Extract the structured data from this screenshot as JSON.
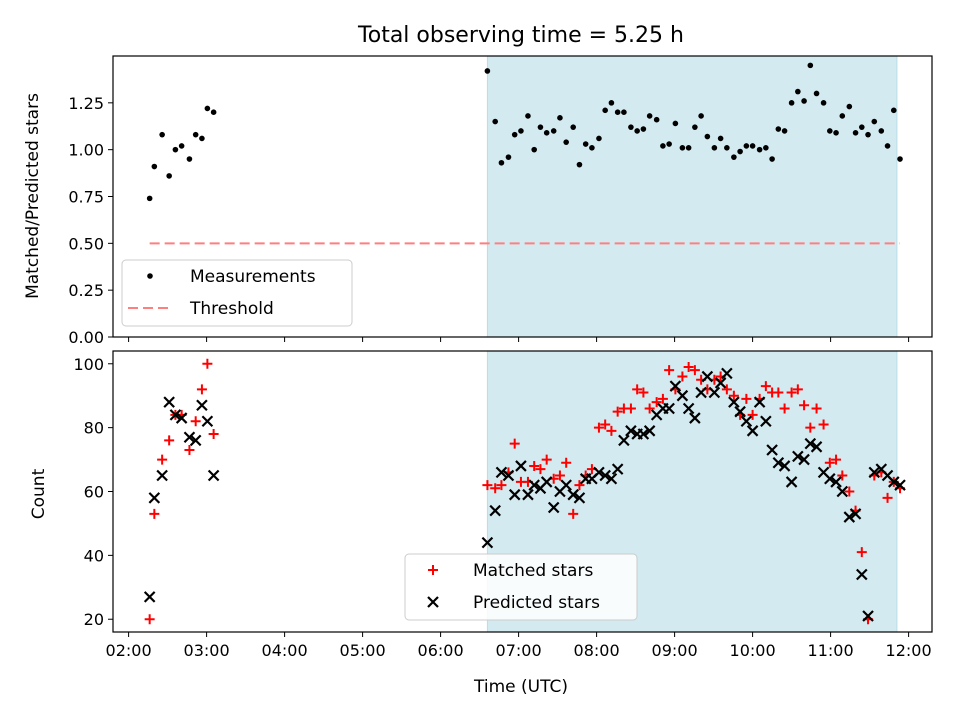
{
  "chart_data": [
    {
      "type": "scatter",
      "title": "Total observing time = 5.25 h",
      "xlabel": "",
      "ylabel": "Matched/Predicted stars",
      "xlim": [
        1.8,
        12.3
      ],
      "ylim": [
        0.0,
        1.5
      ],
      "yticks": [
        0.0,
        0.25,
        0.5,
        0.75,
        1.0,
        1.25
      ],
      "ytick_labels": [
        "0.00",
        "0.25",
        "0.50",
        "0.75",
        "1.00",
        "1.25"
      ],
      "shaded_span": [
        6.6,
        11.85
      ],
      "legend_position": "lower-left",
      "series": [
        {
          "name": "Measurements",
          "marker": "dot",
          "color": "#000000",
          "x": [
            2.27,
            2.33,
            2.43,
            2.52,
            2.6,
            2.68,
            2.78,
            2.86,
            2.94,
            3.01,
            3.09,
            6.6,
            6.7,
            6.78,
            6.87,
            6.95,
            7.03,
            7.12,
            7.2,
            7.28,
            7.36,
            7.45,
            7.53,
            7.61,
            7.7,
            7.78,
            7.86,
            7.94,
            8.03,
            8.11,
            8.19,
            8.27,
            8.35,
            8.44,
            8.52,
            8.6,
            8.68,
            8.77,
            8.85,
            8.93,
            9.01,
            9.1,
            9.18,
            9.26,
            9.34,
            9.42,
            9.51,
            9.59,
            9.67,
            9.76,
            9.84,
            9.92,
            10.0,
            10.09,
            10.17,
            10.25,
            10.33,
            10.41,
            10.5,
            10.58,
            10.66,
            10.74,
            10.82,
            10.91,
            10.99,
            11.07,
            11.15,
            11.24,
            11.32,
            11.4,
            11.48,
            11.56,
            11.65,
            11.73,
            11.81,
            11.89
          ],
          "y": [
            0.74,
            0.91,
            1.08,
            0.86,
            1.0,
            1.02,
            0.95,
            1.08,
            1.06,
            1.22,
            1.2,
            1.42,
            1.15,
            0.93,
            0.96,
            1.08,
            1.1,
            1.18,
            1.0,
            1.12,
            1.09,
            1.1,
            1.17,
            1.04,
            1.12,
            0.92,
            1.03,
            1.01,
            1.06,
            1.21,
            1.25,
            1.2,
            1.2,
            1.12,
            1.1,
            1.11,
            1.18,
            1.16,
            1.02,
            1.03,
            1.14,
            1.01,
            1.01,
            1.12,
            1.18,
            1.07,
            1.01,
            1.06,
            1.01,
            0.96,
            0.99,
            1.02,
            1.02,
            1.0,
            1.01,
            0.95,
            1.11,
            1.1,
            1.25,
            1.31,
            1.26,
            1.45,
            1.3,
            1.25,
            1.1,
            1.09,
            1.18,
            1.23,
            1.09,
            1.12,
            1.08,
            1.15,
            1.1,
            1.02,
            1.21,
            0.95
          ]
        },
        {
          "name": "Threshold",
          "marker": "dashed-line",
          "color": "#ff7f7f",
          "x": [
            2.27,
            11.89
          ],
          "y": [
            0.5,
            0.5
          ]
        }
      ]
    },
    {
      "type": "scatter",
      "title": "",
      "xlabel": "Time (UTC)",
      "ylabel": "Count",
      "xlim": [
        1.8,
        12.3
      ],
      "ylim": [
        16,
        104
      ],
      "yticks": [
        20,
        40,
        60,
        80,
        100
      ],
      "xticks": [
        2,
        3,
        4,
        5,
        6,
        7,
        8,
        9,
        10,
        11,
        12
      ],
      "xtick_labels": [
        "02:00",
        "03:00",
        "04:00",
        "05:00",
        "06:00",
        "07:00",
        "08:00",
        "09:00",
        "10:00",
        "11:00",
        "12:00"
      ],
      "shaded_span": [
        6.6,
        11.85
      ],
      "legend_position": "lower-center",
      "series": [
        {
          "name": "Matched stars",
          "marker": "plus",
          "color": "#ff0000",
          "x": [
            2.27,
            2.33,
            2.43,
            2.52,
            2.6,
            2.68,
            2.78,
            2.86,
            2.94,
            3.01,
            3.09,
            6.6,
            6.7,
            6.78,
            6.87,
            6.95,
            7.03,
            7.12,
            7.2,
            7.28,
            7.36,
            7.45,
            7.53,
            7.61,
            7.7,
            7.78,
            7.86,
            7.94,
            8.03,
            8.11,
            8.19,
            8.27,
            8.35,
            8.44,
            8.52,
            8.6,
            8.68,
            8.77,
            8.85,
            8.93,
            9.01,
            9.1,
            9.18,
            9.26,
            9.34,
            9.42,
            9.51,
            9.59,
            9.67,
            9.76,
            9.84,
            9.92,
            10.0,
            10.09,
            10.17,
            10.25,
            10.33,
            10.41,
            10.5,
            10.58,
            10.66,
            10.74,
            10.82,
            10.91,
            10.99,
            11.07,
            11.15,
            11.24,
            11.32,
            11.4,
            11.48,
            11.56,
            11.65,
            11.73,
            11.81,
            11.89
          ],
          "y": [
            20,
            53,
            70,
            76,
            84,
            84,
            73,
            82,
            92,
            100,
            78,
            62,
            61,
            62,
            66,
            75,
            63,
            63,
            68,
            67,
            70,
            64,
            65,
            69,
            53,
            62,
            65,
            67,
            80,
            81,
            79,
            85,
            86,
            86,
            92,
            91,
            86,
            88,
            89,
            98,
            92,
            96,
            99,
            98,
            95,
            92,
            95,
            96,
            92,
            90,
            84,
            89,
            84,
            89,
            93,
            91,
            91,
            86,
            91,
            92,
            87,
            80,
            86,
            81,
            69,
            70,
            65,
            60,
            54,
            41,
            20,
            65,
            66,
            58,
            63,
            61
          ],
          "note_order": "x paired with y by index"
        },
        {
          "name": "Predicted stars",
          "marker": "x",
          "color": "#000000",
          "x": [
            2.27,
            2.33,
            2.43,
            2.52,
            2.6,
            2.68,
            2.78,
            2.86,
            2.94,
            3.01,
            3.09,
            6.6,
            6.7,
            6.78,
            6.87,
            6.95,
            7.03,
            7.12,
            7.2,
            7.28,
            7.36,
            7.45,
            7.53,
            7.61,
            7.7,
            7.78,
            7.86,
            7.94,
            8.03,
            8.11,
            8.19,
            8.27,
            8.35,
            8.44,
            8.52,
            8.6,
            8.68,
            8.77,
            8.85,
            8.93,
            9.01,
            9.1,
            9.18,
            9.26,
            9.34,
            9.42,
            9.51,
            9.59,
            9.67,
            9.76,
            9.84,
            9.92,
            10.0,
            10.09,
            10.17,
            10.25,
            10.33,
            10.41,
            10.5,
            10.58,
            10.66,
            10.74,
            10.82,
            10.91,
            10.99,
            11.07,
            11.15,
            11.24,
            11.32,
            11.4,
            11.48,
            11.56,
            11.65,
            11.73,
            11.81,
            11.89
          ],
          "y": [
            27,
            58,
            65,
            88,
            84,
            83,
            77,
            76,
            87,
            82,
            65,
            44,
            54,
            66,
            65,
            59,
            68,
            59,
            62,
            61,
            63,
            55,
            60,
            62,
            59,
            58,
            64,
            64,
            66,
            65,
            64,
            67,
            76,
            79,
            78,
            78,
            79,
            84,
            86,
            86,
            93,
            90,
            86,
            83,
            91,
            96,
            91,
            94,
            97,
            88,
            85,
            82,
            79,
            88,
            82,
            73,
            69,
            68,
            63,
            71,
            70,
            75,
            74,
            66,
            64,
            63,
            60,
            52,
            53,
            34,
            21,
            66,
            67,
            65,
            63,
            62
          ],
          "note_order": "x paired with y by index"
        }
      ]
    }
  ]
}
